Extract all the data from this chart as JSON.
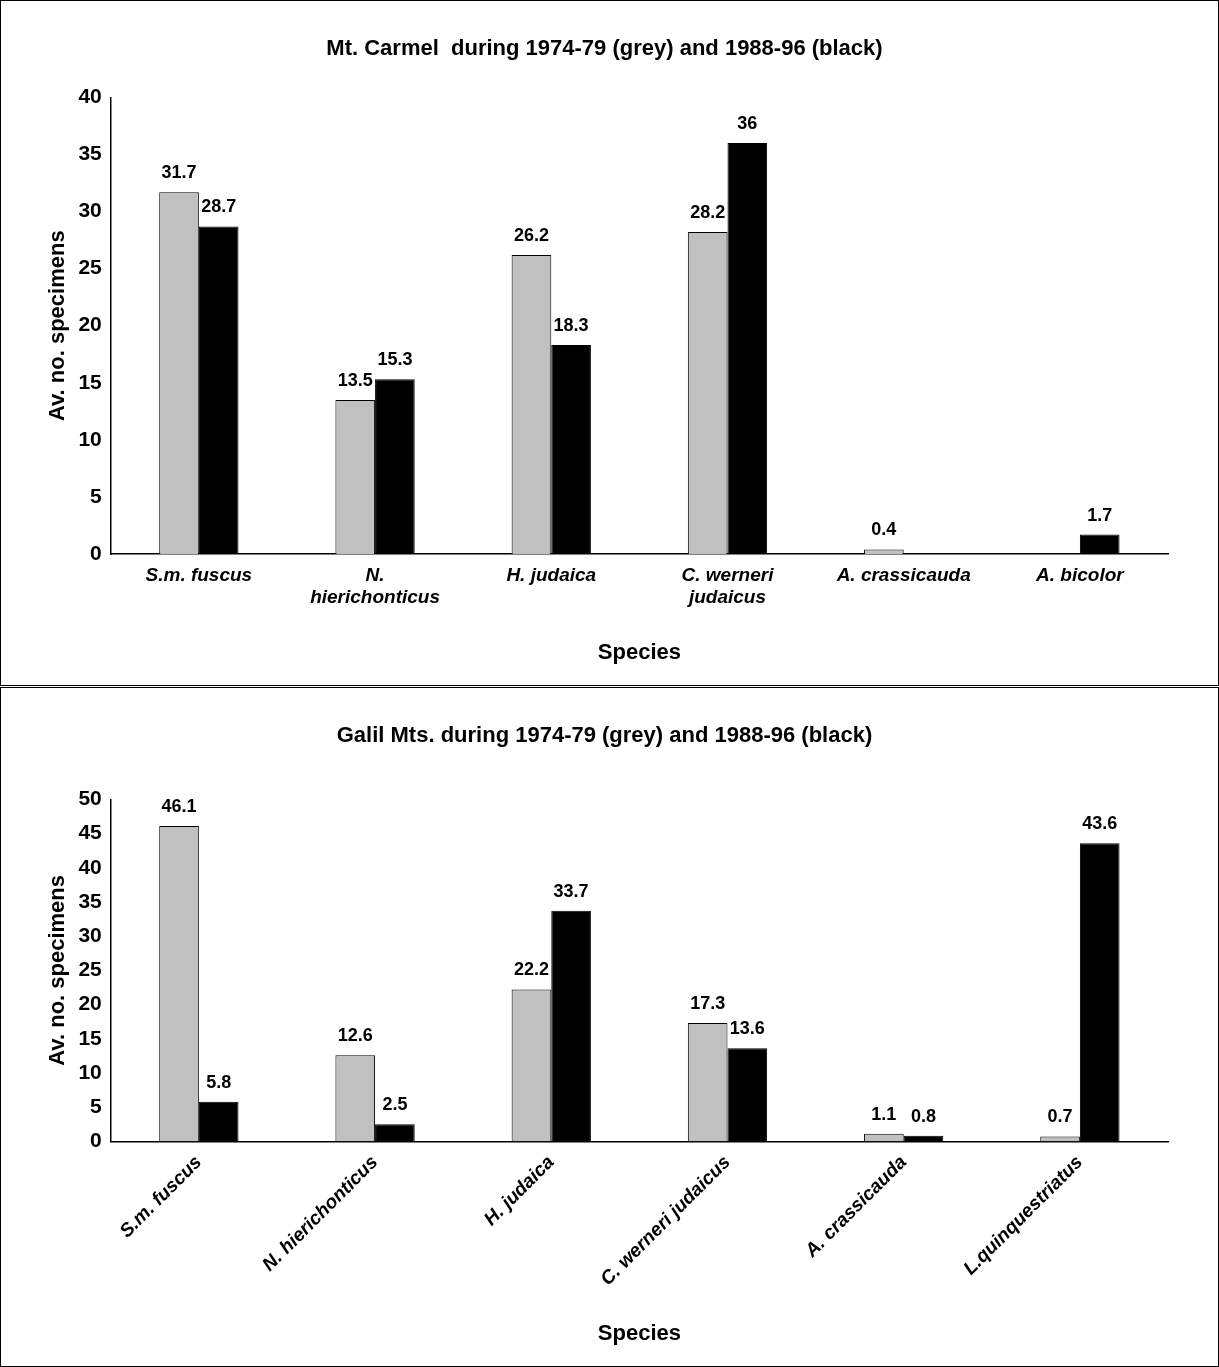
{
  "chart_data": [
    {
      "type": "bar",
      "title": "Mt. Carmel  during 1974-79 (grey) and 1988-96 (black)",
      "xlabel": "Species",
      "ylabel": "Av. no. specimens",
      "categories": [
        "S.m. fuscus",
        "N. hierichonticus",
        "H. judaica",
        "C. werneri judaicus",
        "A. crassicauda",
        "A. bicolor"
      ],
      "series": [
        {
          "color": "#c0c0c0",
          "values": [
            31.7,
            13.5,
            26.2,
            28.2,
            0.4,
            null
          ]
        },
        {
          "color": "#000000",
          "values": [
            28.7,
            15.3,
            18.3,
            36,
            null,
            1.7
          ]
        }
      ],
      "ylim": [
        0,
        40
      ],
      "yticks": [
        0,
        5,
        10,
        15,
        20,
        25,
        30,
        35,
        40
      ],
      "grid": false,
      "legend": false,
      "data_labels": true
    },
    {
      "type": "bar",
      "title": "Galil Mts. during 1974-79 (grey) and 1988-96 (black)",
      "xlabel": "Species",
      "ylabel": "Av. no. specimens",
      "categories": [
        "S.m. fuscus",
        "N. hierichonticus",
        "H. judaica",
        "C. werneri judaicus",
        "A. crassicauda",
        "L.quinquestriatus"
      ],
      "series": [
        {
          "color": "#c0c0c0",
          "values": [
            46.1,
            12.6,
            22.2,
            17.3,
            1.1,
            0.7
          ]
        },
        {
          "color": "#000000",
          "values": [
            5.8,
            2.5,
            33.7,
            13.6,
            0.8,
            43.6
          ]
        }
      ],
      "ylim": [
        0,
        50
      ],
      "yticks": [
        0,
        5,
        10,
        15,
        20,
        25,
        30,
        35,
        40,
        45,
        50
      ],
      "grid": false,
      "legend": false,
      "data_labels": true
    }
  ]
}
